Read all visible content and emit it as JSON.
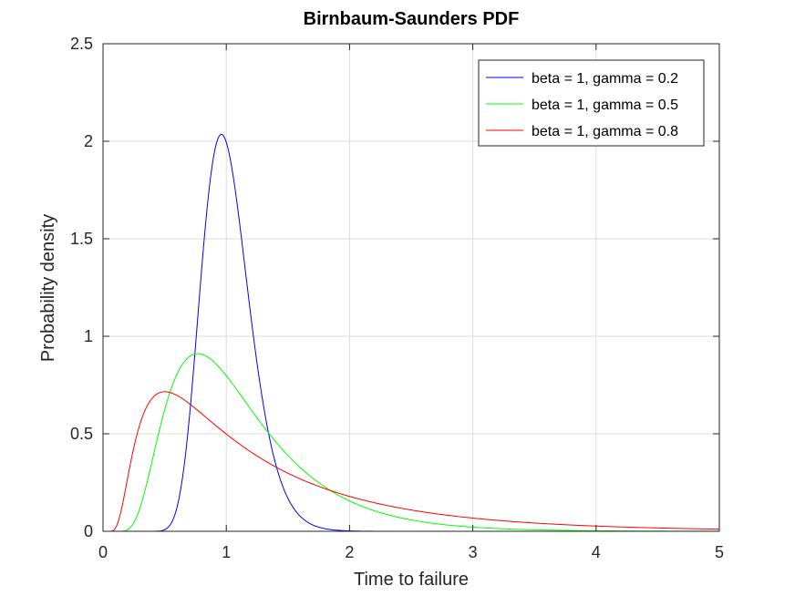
{
  "chart_data": {
    "type": "line",
    "title": "Birnbaum-Saunders PDF",
    "xlabel": "Time to failure",
    "ylabel": "Probability density",
    "xlim": [
      0,
      5
    ],
    "ylim": [
      0,
      2.5
    ],
    "xticks": [
      0,
      1,
      2,
      3,
      4,
      5
    ],
    "yticks": [
      0,
      0.5,
      1,
      1.5,
      2,
      2.5
    ],
    "xtick_labels": [
      "0",
      "1",
      "2",
      "3",
      "4",
      "5"
    ],
    "ytick_labels": [
      "0",
      "0.5",
      "1",
      "1.5",
      "2",
      "2.5"
    ],
    "grid": true,
    "legend_position": "top-right",
    "series": [
      {
        "name": "beta = 1, gamma = 0.2",
        "color": "#0000ff",
        "beta": 1,
        "gamma": 0.2,
        "x": [
          0.1,
          0.5,
          0.6,
          0.7,
          0.8,
          0.9,
          0.96,
          1.0,
          1.1,
          1.2,
          1.3,
          1.4,
          1.5,
          1.6,
          1.8,
          2.0,
          2.5,
          4.35
        ],
        "y": [
          0.0,
          0.02,
          0.159,
          0.638,
          1.378,
          1.911,
          2.028,
          2.011,
          1.716,
          1.229,
          0.78,
          0.452,
          0.245,
          0.126,
          0.03,
          0.006,
          0.0,
          0.0
        ]
      },
      {
        "name": "beta = 1, gamma = 0.5",
        "color": "#00ff00",
        "beta": 1,
        "gamma": 0.5,
        "x": [
          0.1,
          0.2,
          0.3,
          0.4,
          0.5,
          0.6,
          0.7,
          0.8,
          0.9,
          1.0,
          1.2,
          1.4,
          1.6,
          1.8,
          2.0,
          2.5,
          3.0,
          3.5,
          4.0,
          4.5,
          5.0
        ],
        "y": [
          0.0,
          0.023,
          0.199,
          0.495,
          0.745,
          0.884,
          0.924,
          0.899,
          0.841,
          0.771,
          0.616,
          0.484,
          0.383,
          0.301,
          0.233,
          0.127,
          0.07,
          0.041,
          0.024,
          0.014,
          0.009
        ]
      },
      {
        "name": "beta = 1, gamma = 0.8",
        "color": "#ff0000",
        "beta": 1,
        "gamma": 0.8,
        "x": [
          0.02,
          0.05,
          0.1,
          0.2,
          0.3,
          0.4,
          0.5,
          0.6,
          0.8,
          1.0,
          1.2,
          1.5,
          2.0,
          2.5,
          3.0,
          3.5,
          4.0,
          4.5,
          5.0
        ],
        "y": [
          0.0,
          0.008,
          0.116,
          0.48,
          0.656,
          0.711,
          0.713,
          0.686,
          0.598,
          0.499,
          0.427,
          0.334,
          0.224,
          0.151,
          0.106,
          0.076,
          0.053,
          0.036,
          0.024
        ]
      }
    ]
  }
}
